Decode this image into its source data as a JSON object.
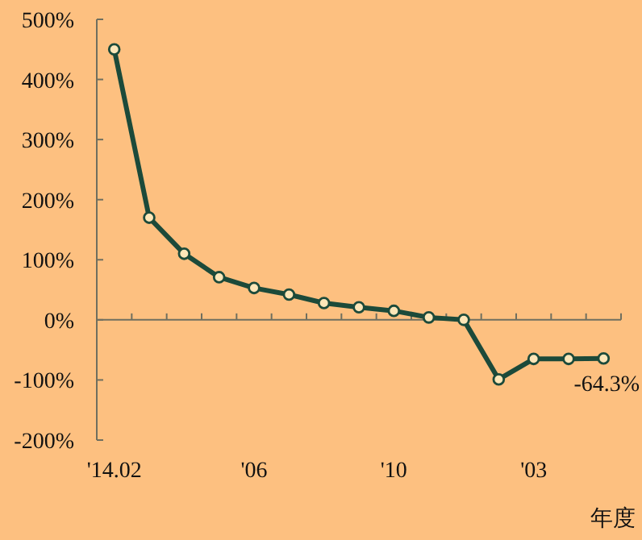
{
  "chart_data": {
    "type": "line",
    "xlabel": "年度",
    "categories": [
      "'14.02",
      null,
      null,
      null,
      "'06",
      null,
      null,
      null,
      "'10",
      null,
      null,
      null,
      "'03",
      null,
      null
    ],
    "series": [
      {
        "color": "#1c4a3a",
        "values": [
          450,
          170,
          110,
          71,
          53,
          42,
          28,
          21,
          15,
          4,
          0,
          -99,
          -65,
          -65,
          -64.3
        ],
        "value_labels": [
          null,
          null,
          null,
          null,
          null,
          null,
          null,
          null,
          null,
          null,
          null,
          null,
          null,
          null,
          "-64.3%"
        ]
      }
    ],
    "ylim": [
      -200,
      500
    ],
    "yticks": [
      {
        "value": -200,
        "label": "-200%"
      },
      {
        "value": -100,
        "label": "-100%"
      },
      {
        "value": 0,
        "label": "0%"
      },
      {
        "value": 100,
        "label": "100%"
      },
      {
        "value": 200,
        "label": "200%"
      },
      {
        "value": 300,
        "label": "300%"
      },
      {
        "value": 400,
        "label": "400%"
      },
      {
        "value": 500,
        "label": "500%"
      }
    ],
    "marker": "circle"
  }
}
